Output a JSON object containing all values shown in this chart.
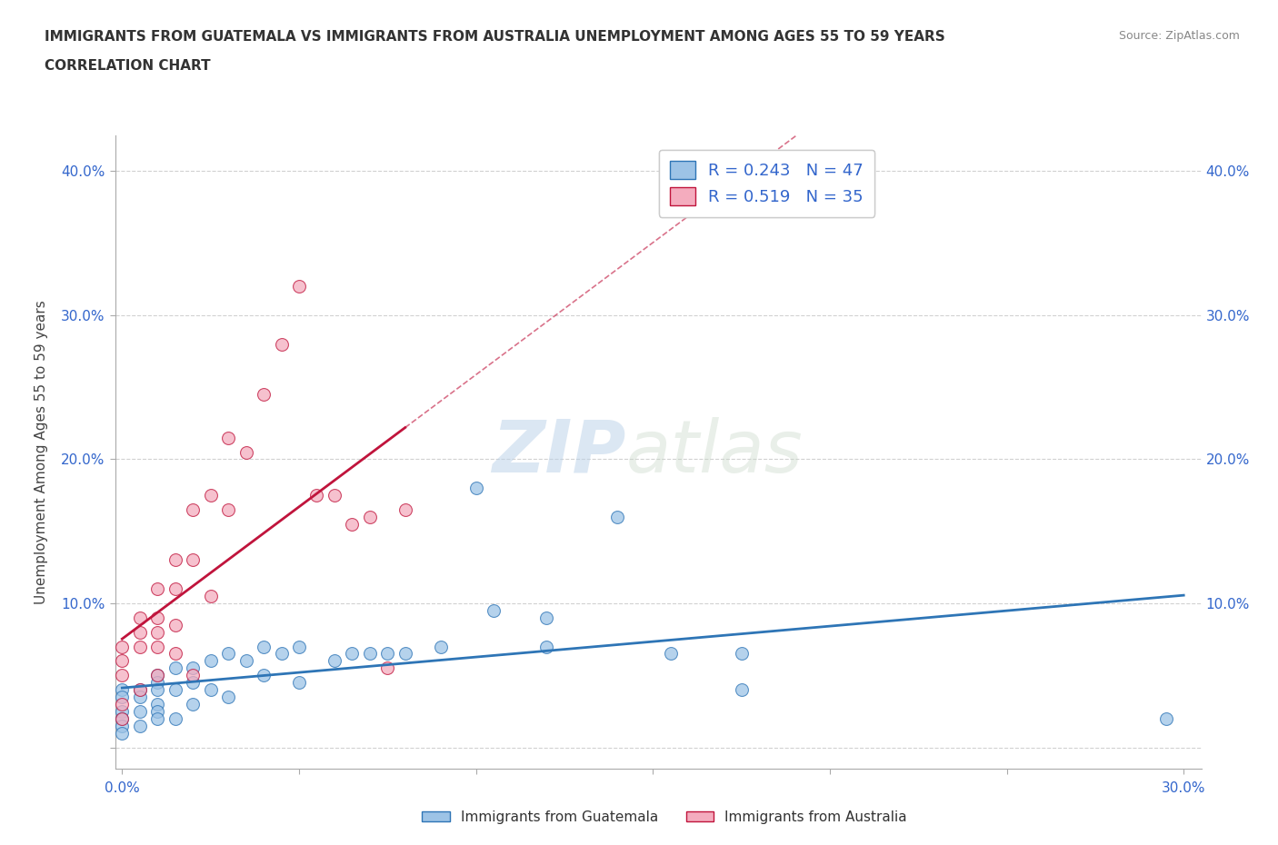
{
  "title_line1": "IMMIGRANTS FROM GUATEMALA VS IMMIGRANTS FROM AUSTRALIA UNEMPLOYMENT AMONG AGES 55 TO 59 YEARS",
  "title_line2": "CORRELATION CHART",
  "source": "Source: ZipAtlas.com",
  "ylabel": "Unemployment Among Ages 55 to 59 years",
  "xlim": [
    -0.002,
    0.305
  ],
  "ylim": [
    -0.015,
    0.425
  ],
  "xtick_positions": [
    0.0,
    0.05,
    0.1,
    0.15,
    0.2,
    0.25,
    0.3
  ],
  "xtick_labels": [
    "0.0%",
    "",
    "",
    "",
    "",
    "",
    "30.0%"
  ],
  "ytick_positions": [
    0.0,
    0.1,
    0.2,
    0.3,
    0.4
  ],
  "ytick_labels": [
    "",
    "10.0%",
    "20.0%",
    "30.0%",
    "40.0%"
  ],
  "r_guatemala": 0.243,
  "n_guatemala": 47,
  "r_australia": 0.519,
  "n_australia": 35,
  "color_guatemala": "#9DC3E6",
  "color_australia": "#F4ACBE",
  "line_color_guatemala": "#2E75B6",
  "line_color_australia": "#C0143C",
  "watermark_zip": "ZIP",
  "watermark_atlas": "atlas",
  "legend_label_guatemala": "Immigrants from Guatemala",
  "legend_label_australia": "Immigrants from Australia",
  "guatemala_x": [
    0.0,
    0.0,
    0.0,
    0.0,
    0.0,
    0.0,
    0.005,
    0.005,
    0.005,
    0.005,
    0.01,
    0.01,
    0.01,
    0.01,
    0.01,
    0.01,
    0.015,
    0.015,
    0.015,
    0.02,
    0.02,
    0.02,
    0.025,
    0.025,
    0.03,
    0.03,
    0.035,
    0.04,
    0.04,
    0.045,
    0.05,
    0.05,
    0.06,
    0.065,
    0.07,
    0.075,
    0.08,
    0.09,
    0.1,
    0.105,
    0.12,
    0.12,
    0.14,
    0.155,
    0.175,
    0.175,
    0.295
  ],
  "guatemala_y": [
    0.04,
    0.035,
    0.025,
    0.02,
    0.015,
    0.01,
    0.04,
    0.035,
    0.025,
    0.015,
    0.05,
    0.045,
    0.04,
    0.03,
    0.025,
    0.02,
    0.055,
    0.04,
    0.02,
    0.055,
    0.045,
    0.03,
    0.06,
    0.04,
    0.065,
    0.035,
    0.06,
    0.07,
    0.05,
    0.065,
    0.07,
    0.045,
    0.06,
    0.065,
    0.065,
    0.065,
    0.065,
    0.07,
    0.18,
    0.095,
    0.07,
    0.09,
    0.16,
    0.065,
    0.065,
    0.04,
    0.02
  ],
  "australia_x": [
    0.0,
    0.0,
    0.0,
    0.0,
    0.0,
    0.005,
    0.005,
    0.005,
    0.01,
    0.01,
    0.01,
    0.01,
    0.015,
    0.015,
    0.015,
    0.02,
    0.02,
    0.02,
    0.025,
    0.025,
    0.03,
    0.03,
    0.035,
    0.04,
    0.045,
    0.05,
    0.055,
    0.06,
    0.065,
    0.07,
    0.075,
    0.08,
    0.005,
    0.01,
    0.015
  ],
  "australia_y": [
    0.07,
    0.06,
    0.05,
    0.03,
    0.02,
    0.09,
    0.07,
    0.04,
    0.11,
    0.09,
    0.07,
    0.05,
    0.13,
    0.11,
    0.065,
    0.165,
    0.13,
    0.05,
    0.175,
    0.105,
    0.215,
    0.165,
    0.205,
    0.245,
    0.28,
    0.32,
    0.175,
    0.175,
    0.155,
    0.16,
    0.055,
    0.165,
    0.08,
    0.08,
    0.085
  ]
}
